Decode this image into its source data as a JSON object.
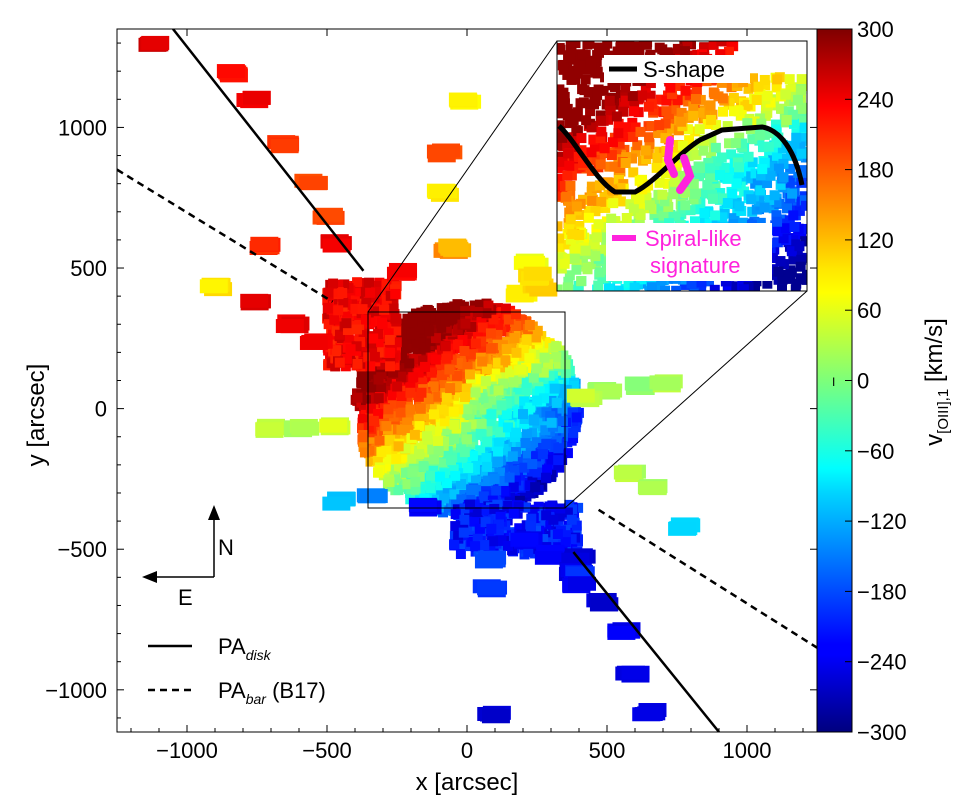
{
  "chart_data": {
    "type": "scatter",
    "title": "",
    "xlabel": "x [arcsec]",
    "ylabel": "y [arcsec]",
    "xlim": [
      -1250,
      1250
    ],
    "ylim": [
      -1150,
      1350
    ],
    "xticks": [
      -1000,
      -500,
      0,
      500,
      1000
    ],
    "yticks": [
      -1000,
      -500,
      0,
      500,
      1000
    ],
    "xtick_labels": [
      "−1000",
      "−500",
      "0",
      "500",
      "1000"
    ],
    "ytick_labels": [
      "−1000",
      "−500",
      "0",
      "500",
      "1000"
    ],
    "colorbar": {
      "label": "v[OIII],1 [km/s]",
      "label_main": "v",
      "label_sub": "[OIII],1",
      "label_unit": " [km/s]",
      "range": [
        -300,
        300
      ],
      "ticks": [
        300,
        240,
        180,
        120,
        60,
        0,
        -60,
        -120,
        -180,
        -240,
        -300
      ],
      "tick_labels": [
        "300",
        "240",
        "180",
        "120",
        "60",
        "0",
        "−60",
        "−120",
        "−180",
        "−240",
        "−300"
      ]
    },
    "lines": [
      {
        "name": "PA_disk",
        "label_main": "PA",
        "label_sub": "disk",
        "label_after": "",
        "style": "solid",
        "points": [
          [
            -1050,
            1350
          ],
          [
            -370,
            490
          ],
          [
            380,
            -510
          ],
          [
            900,
            -1150
          ]
        ]
      },
      {
        "name": "PA_bar (B17)",
        "label_main": "PA",
        "label_sub": "bar",
        "label_after": " (B17)",
        "style": "dashed",
        "points": [
          [
            -1250,
            850
          ],
          [
            -480,
            380
          ],
          [
            470,
            -360
          ],
          [
            1250,
            -850
          ]
        ]
      }
    ],
    "zoom_box": {
      "x": [
        -350,
        350
      ],
      "y": [
        -350,
        350
      ]
    },
    "outer_clumps": [
      {
        "x": -1110,
        "y": 1300,
        "v": 250
      },
      {
        "x": -840,
        "y": 1190,
        "v": 220
      },
      {
        "x": -760,
        "y": 1100,
        "v": 230
      },
      {
        "x": -660,
        "y": 940,
        "v": 190
      },
      {
        "x": -560,
        "y": 800,
        "v": 180
      },
      {
        "x": -500,
        "y": 680,
        "v": 190
      },
      {
        "x": -460,
        "y": 590,
        "v": 240
      },
      {
        "x": -720,
        "y": 580,
        "v": 200
      },
      {
        "x": -900,
        "y": 430,
        "v": 90
      },
      {
        "x": -760,
        "y": 380,
        "v": 250
      },
      {
        "x": -620,
        "y": 300,
        "v": 240
      },
      {
        "x": -540,
        "y": 240,
        "v": 230
      },
      {
        "x": -10,
        "y": 1090,
        "v": 80
      },
      {
        "x": -80,
        "y": 910,
        "v": 180
      },
      {
        "x": -80,
        "y": 770,
        "v": 90
      },
      {
        "x": -60,
        "y": 560,
        "v": 140
      },
      {
        "x": 230,
        "y": 520,
        "v": 70
      },
      {
        "x": 200,
        "y": 410,
        "v": 80
      },
      {
        "x": 260,
        "y": 430,
        "v": 100
      },
      {
        "x": 490,
        "y": 60,
        "v": 20
      },
      {
        "x": 620,
        "y": 80,
        "v": 10
      },
      {
        "x": 710,
        "y": 90,
        "v": 30
      },
      {
        "x": 420,
        "y": 40,
        "v": 40
      },
      {
        "x": -700,
        "y": -70,
        "v": 40
      },
      {
        "x": -590,
        "y": -70,
        "v": 30
      },
      {
        "x": -480,
        "y": -60,
        "v": 50
      },
      {
        "x": 580,
        "y": -230,
        "v": 30
      },
      {
        "x": 660,
        "y": -280,
        "v": 20
      },
      {
        "x": 770,
        "y": -420,
        "v": -100
      },
      {
        "x": -460,
        "y": -330,
        "v": -110
      },
      {
        "x": -340,
        "y": -310,
        "v": -140
      },
      {
        "x": -150,
        "y": -350,
        "v": -230
      },
      {
        "x": 80,
        "y": -540,
        "v": -180
      },
      {
        "x": 80,
        "y": -640,
        "v": -200
      },
      {
        "x": 210,
        "y": -470,
        "v": -230
      },
      {
        "x": 300,
        "y": -520,
        "v": -220
      },
      {
        "x": 400,
        "y": -530,
        "v": -250
      },
      {
        "x": 390,
        "y": -580,
        "v": -240
      },
      {
        "x": 400,
        "y": -580,
        "v": -200
      },
      {
        "x": 100,
        "y": -1090,
        "v": -250
      },
      {
        "x": 400,
        "y": -630,
        "v": -230
      },
      {
        "x": 480,
        "y": -690,
        "v": -250
      },
      {
        "x": 560,
        "y": -790,
        "v": -230
      },
      {
        "x": 590,
        "y": -940,
        "v": -240
      },
      {
        "x": 650,
        "y": -1080,
        "v": -240
      },
      {
        "x": 240,
        "y": 470,
        "v": 90
      },
      {
        "x": -230,
        "y": 490,
        "v": 230
      },
      {
        "x": -40,
        "y": 570,
        "v": 120
      }
    ],
    "annotations": {
      "north": "N",
      "east": "E",
      "inset_legend_1": "S-shape",
      "inset_legend_2_line1": "Spiral-like",
      "inset_legend_2_line2": "signature",
      "colorbar_midmark": "I"
    },
    "colors": {
      "s_shape": "#000000",
      "spiral": "#ff22dd"
    }
  }
}
